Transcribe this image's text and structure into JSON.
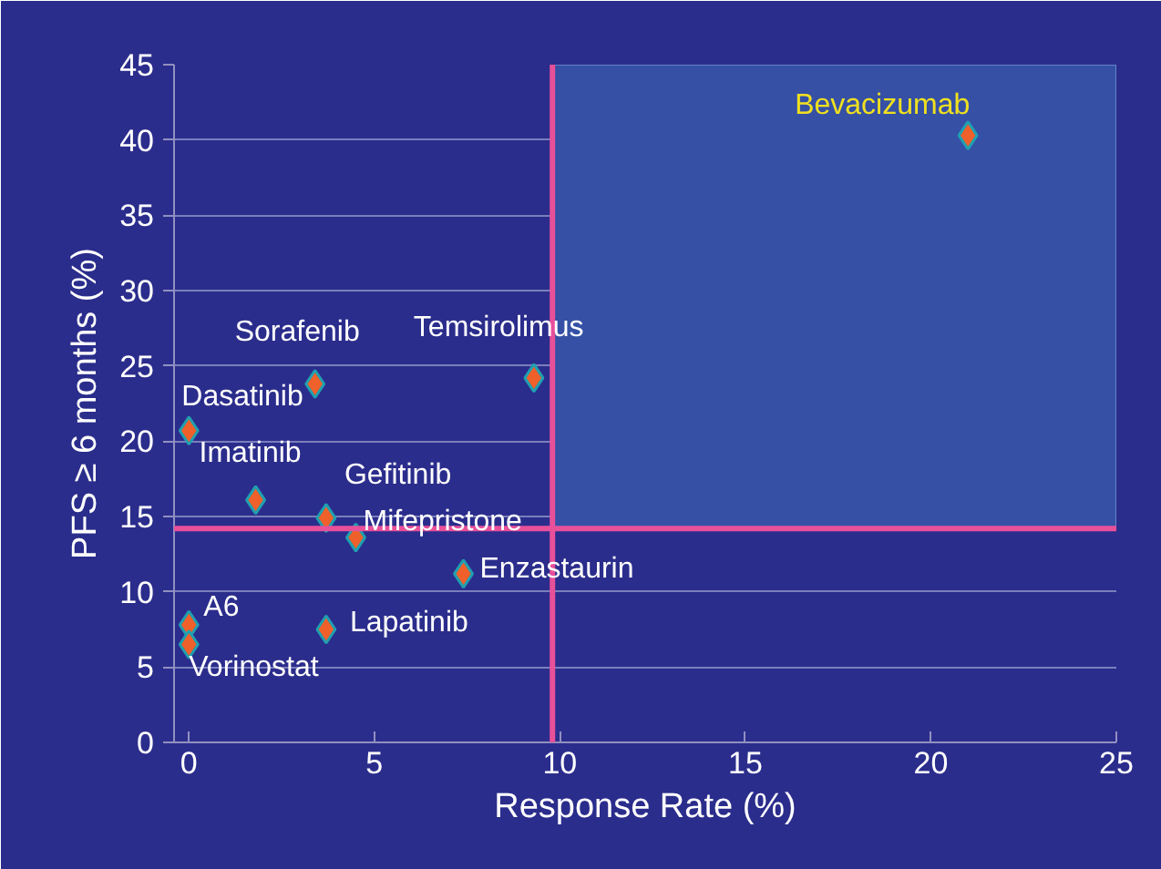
{
  "chart_data": {
    "type": "scatter",
    "xlabel": "Response Rate (%)",
    "ylabel": "PFS ≥ 6 months (%)",
    "x": [
      21.0,
      9.3,
      3.4,
      0,
      1.8,
      3.7,
      4.5,
      7.4,
      3.7,
      0,
      0
    ],
    "series": [
      {
        "color": "#f0602a",
        "values": [
          40.3,
          24.2,
          23.8,
          20.7,
          16.1,
          14.9,
          13.6,
          11.2,
          7.5,
          7.8,
          6.5
        ]
      }
    ],
    "marker": "diamond",
    "xlim": [
      -0.4,
      25
    ],
    "ylim": [
      0,
      45
    ],
    "xticks": [
      0,
      5,
      10,
      15,
      20,
      25
    ],
    "yticks": [
      0,
      5,
      10,
      15,
      20,
      25,
      30,
      35,
      40,
      45
    ],
    "grid": "y",
    "ref_lines": [
      {
        "axis": "x",
        "value": 9.8,
        "color": "#e8509a"
      },
      {
        "axis": "y",
        "value": 14.2,
        "color": "#e8509a"
      }
    ],
    "bands": [
      {
        "axis": "x",
        "from": 9.8,
        "to": 25,
        "color": "#3550a5"
      }
    ],
    "annotations": [
      {
        "text": "Bevacizumab",
        "x": 21.0,
        "y": 40.3
      },
      {
        "text": "Temsirolimus",
        "x": 9.3,
        "y": 24.2
      },
      {
        "text": "Sorafenib",
        "x": 3.4,
        "y": 23.8
      },
      {
        "text": "Dasatinib",
        "x": 0,
        "y": 20.7
      },
      {
        "text": "Imatinib",
        "x": 1.8,
        "y": 16.1
      },
      {
        "text": "Gefitinib",
        "x": 3.7,
        "y": 14.9
      },
      {
        "text": "Mifepristone",
        "x": 4.5,
        "y": 13.6
      },
      {
        "text": "Enzastaurin",
        "x": 7.4,
        "y": 11.2
      },
      {
        "text": "Lapatinib",
        "x": 3.7,
        "y": 7.5
      },
      {
        "text": "A6",
        "x": 0,
        "y": 7.8
      },
      {
        "text": "Vorinostat",
        "x": 0,
        "y": 6.5
      }
    ]
  }
}
